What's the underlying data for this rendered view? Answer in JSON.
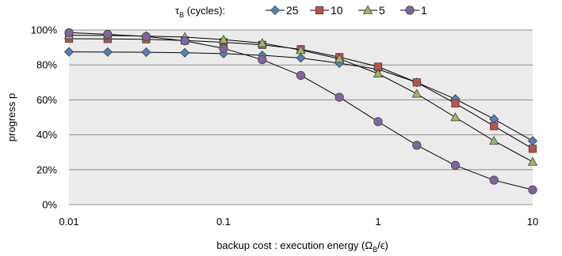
{
  "chart_data": {
    "type": "line",
    "x_scale": "log",
    "xlim": [
      0.01,
      10
    ],
    "ylim": [
      0,
      100
    ],
    "x_ticks": [
      {
        "value": 0.01,
        "label": "0.01"
      },
      {
        "value": 0.1,
        "label": "0.1"
      },
      {
        "value": 1,
        "label": "1"
      },
      {
        "value": 10,
        "label": "10"
      }
    ],
    "y_ticks": [
      {
        "value": 0,
        "label": "0%"
      },
      {
        "value": 20,
        "label": "20%"
      },
      {
        "value": 40,
        "label": "40%"
      },
      {
        "value": 60,
        "label": "60%"
      },
      {
        "value": 80,
        "label": "80%"
      },
      {
        "value": 100,
        "label": "100%"
      }
    ],
    "xlabel": {
      "prefix": "backup cost : execution energy  (Ω",
      "sub": "B",
      "suffix": "/ϵ)"
    },
    "ylabel": "progress p",
    "grid": "horizontal",
    "plot_background": "#ebebeb",
    "legend": {
      "placement": "top",
      "title_symbol": "τ",
      "title_sub": "B",
      "title_suffix": " (cycles):"
    },
    "x": [
      0.01,
      0.0178,
      0.0316,
      0.0562,
      0.1,
      0.178,
      0.316,
      0.562,
      1,
      1.78,
      3.16,
      5.62,
      10
    ],
    "series": [
      {
        "name": "25",
        "marker": "diamond",
        "color": "#4f81bd",
        "values": [
          87.5,
          87.4,
          87.3,
          87.0,
          86.5,
          85.5,
          84.0,
          81.0,
          77.5,
          70.0,
          60.5,
          49.0,
          36.5
        ]
      },
      {
        "name": "10",
        "marker": "square",
        "color": "#c0504d",
        "values": [
          95.0,
          94.9,
          94.7,
          94.0,
          93.0,
          91.5,
          89.0,
          84.5,
          79.0,
          70.0,
          58.0,
          45.0,
          32.0
        ]
      },
      {
        "name": "5",
        "marker": "triangle",
        "color": "#9bbb59",
        "values": [
          97.0,
          96.9,
          96.5,
          96.0,
          94.5,
          92.5,
          88.5,
          83.5,
          75.0,
          63.5,
          50.0,
          36.5,
          24.5
        ]
      },
      {
        "name": "1",
        "marker": "circle",
        "color": "#8064a2",
        "values": [
          98.5,
          97.5,
          96.3,
          93.8,
          89.5,
          83.0,
          74.0,
          61.5,
          47.5,
          34.0,
          22.5,
          14.0,
          8.5
        ]
      }
    ]
  }
}
